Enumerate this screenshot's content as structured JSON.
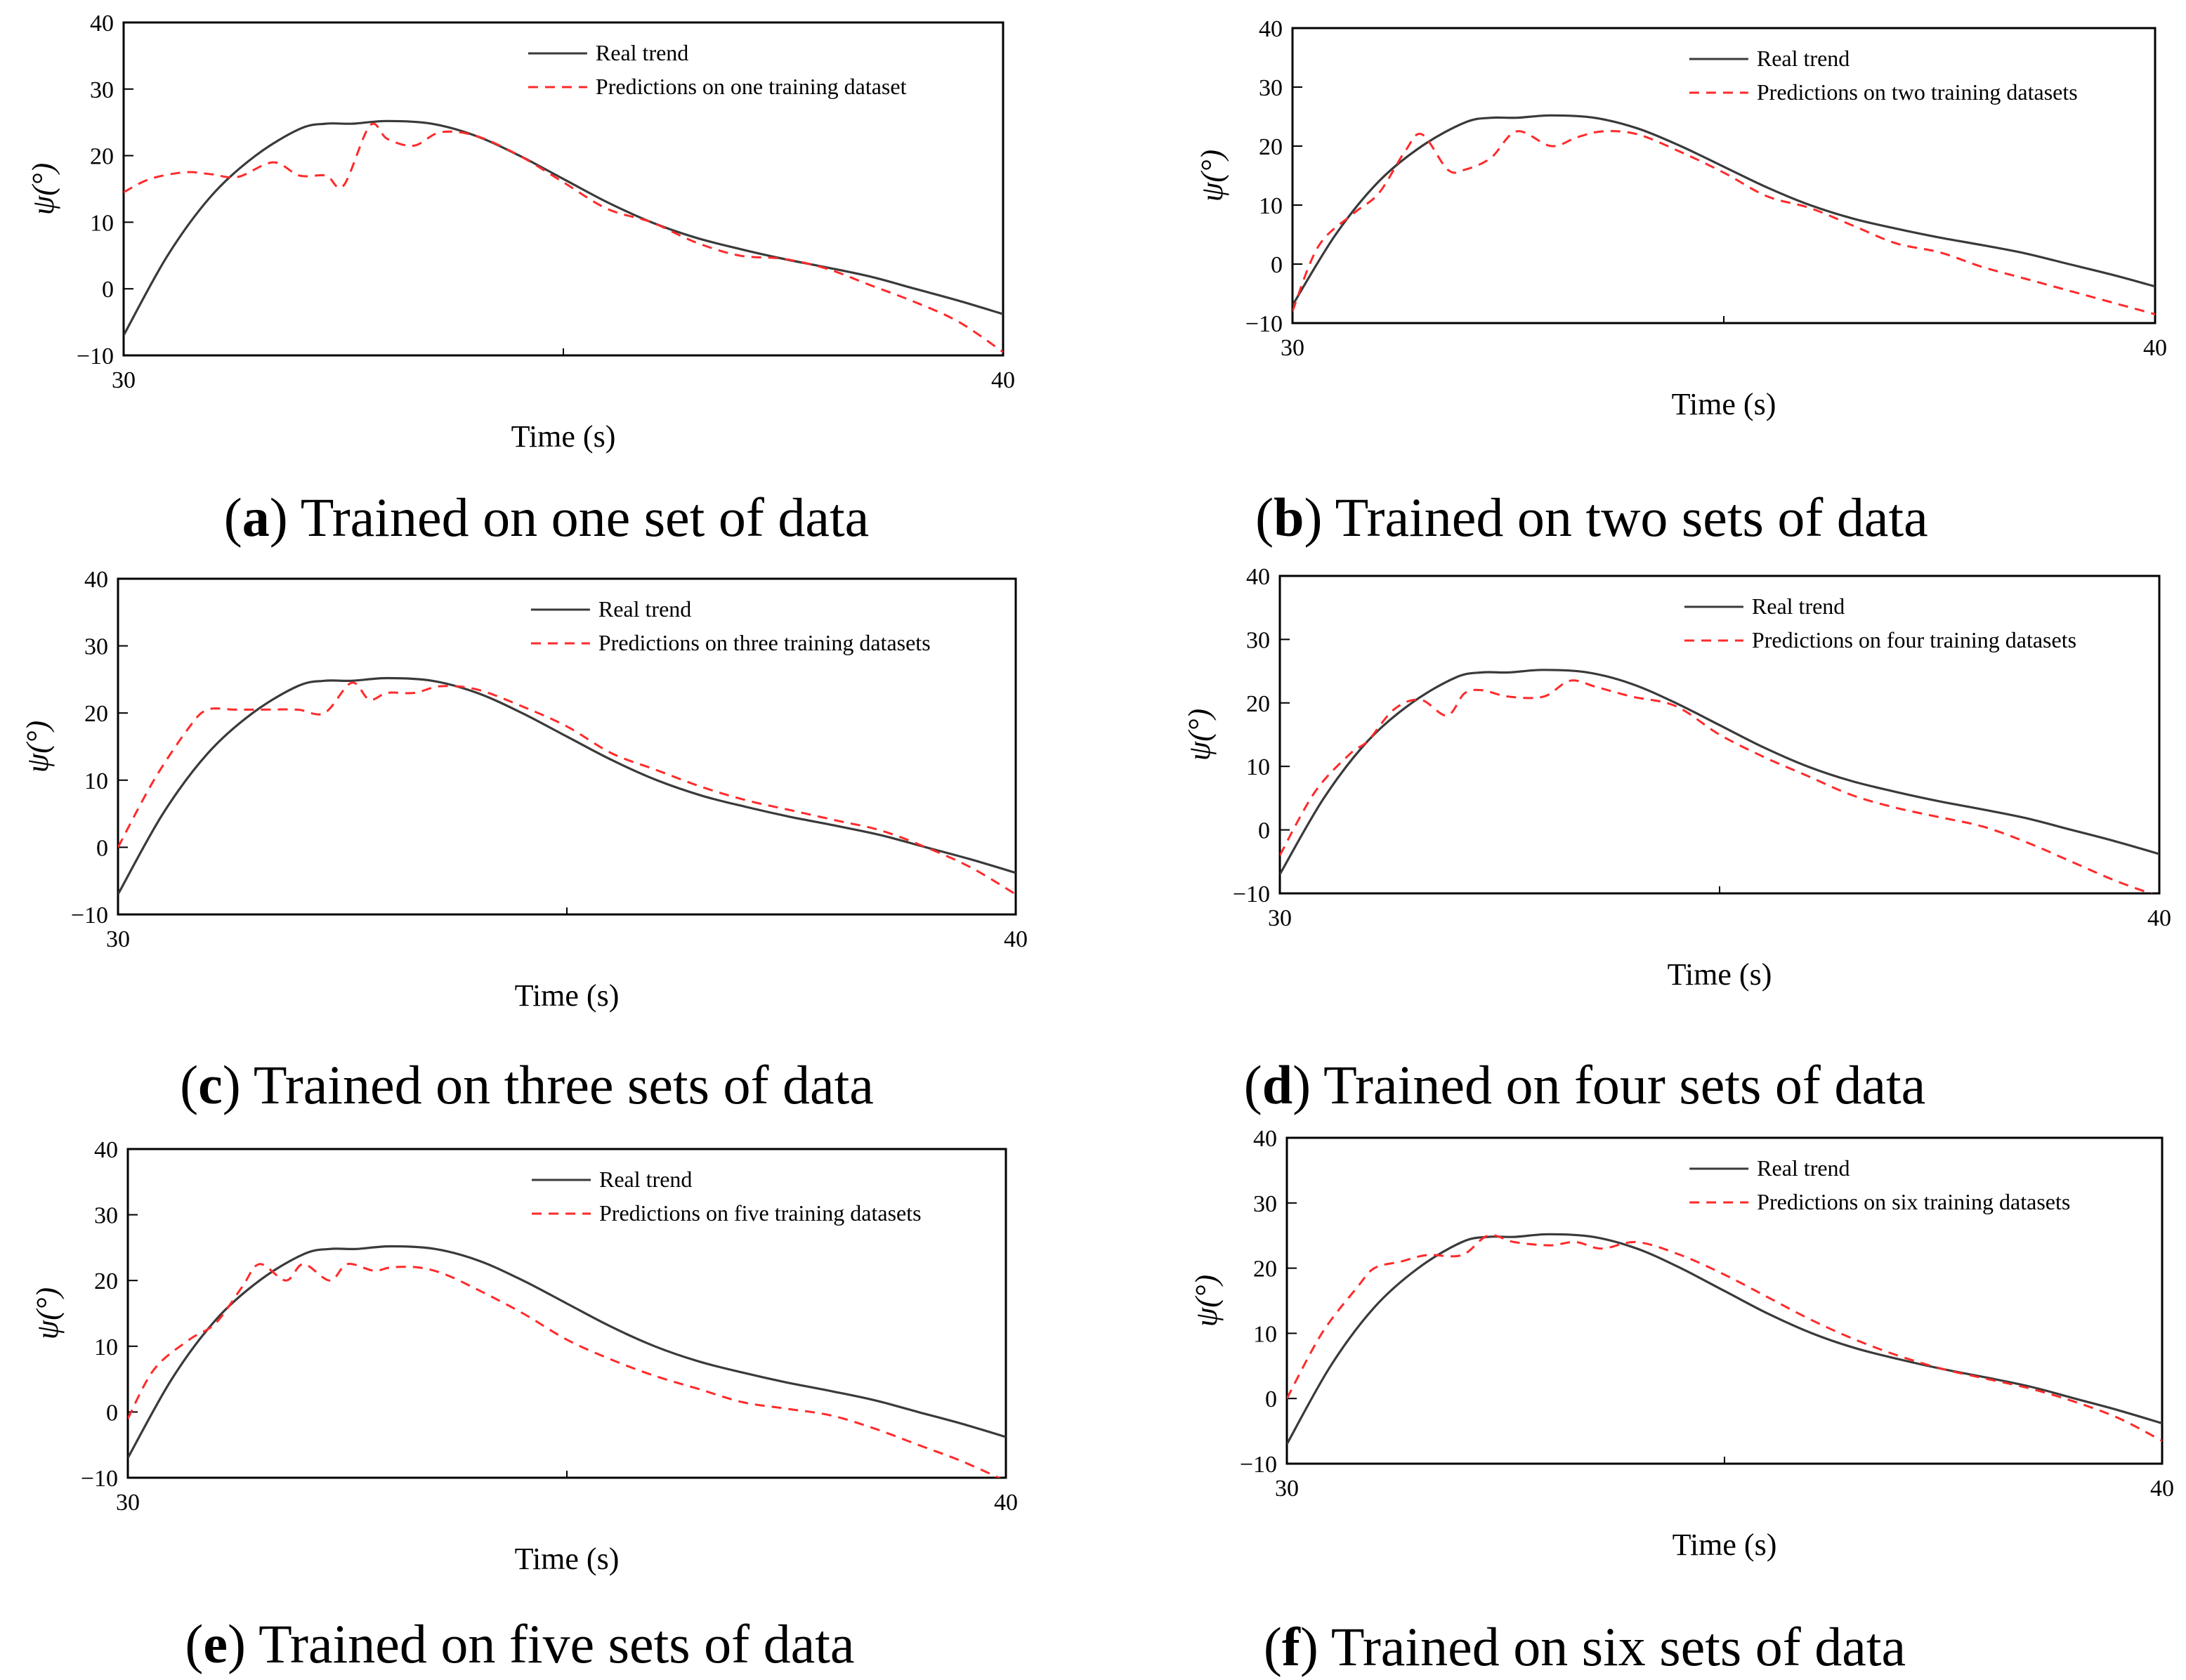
{
  "figure": {
    "colors": {
      "real": "#3a3a3a",
      "pred": "#ff2a2a",
      "axis": "#000000"
    }
  },
  "chart_data": [
    {
      "id": "a",
      "type": "line",
      "caption_letter": "a",
      "caption_text": "Trained on one set of data",
      "xlabel": "Time (s)",
      "ylabel": "ψ(°)",
      "xlim": [
        30,
        40
      ],
      "ylim": [
        -10,
        40
      ],
      "xticks": [
        30,
        40
      ],
      "yticks": [
        -10,
        0,
        10,
        20,
        30,
        40
      ],
      "legend": [
        "Real trend",
        "Predictions on one training dataset"
      ],
      "series": [
        {
          "name": "Real trend",
          "x": [
            30,
            30.5,
            31,
            31.5,
            32,
            32.3,
            32.6,
            33,
            33.5,
            34,
            34.5,
            35,
            35.5,
            36,
            36.5,
            37,
            37.5,
            38,
            38.5,
            39,
            39.5,
            40
          ],
          "y": [
            -7,
            5,
            14,
            20,
            24,
            24.8,
            24.8,
            25.2,
            24.8,
            23,
            20,
            16.5,
            13,
            10,
            7.7,
            6,
            4.5,
            3.2,
            1.8,
            0,
            -1.8,
            -3.8
          ]
        },
        {
          "name": "Predictions on one training dataset",
          "x": [
            30,
            30.3,
            30.7,
            31,
            31.3,
            31.7,
            32,
            32.3,
            32.5,
            32.8,
            33,
            33.3,
            33.6,
            34,
            34.5,
            35,
            35.5,
            36,
            36.5,
            37,
            37.5,
            38,
            38.5,
            39,
            39.5,
            40
          ],
          "y": [
            14.5,
            16.5,
            17.5,
            17.2,
            16.8,
            19,
            17,
            17,
            15.5,
            24.5,
            22.5,
            21.5,
            23.5,
            23,
            20,
            16,
            12,
            10,
            7,
            5,
            4.5,
            3,
            0.5,
            -2,
            -5,
            -9.5
          ]
        }
      ]
    },
    {
      "id": "b",
      "type": "line",
      "caption_letter": "b",
      "caption_text": "Trained on two sets of data",
      "xlabel": "Time (s)",
      "ylabel": "ψ(°)",
      "xlim": [
        30,
        40
      ],
      "ylim": [
        -10,
        40
      ],
      "xticks": [
        30,
        40
      ],
      "yticks": [
        -10,
        0,
        10,
        20,
        30,
        40
      ],
      "legend": [
        "Real trend",
        "Predictions on two training datasets"
      ],
      "series": [
        {
          "name": "Real trend",
          "x": [
            30,
            30.5,
            31,
            31.5,
            32,
            32.3,
            32.6,
            33,
            33.5,
            34,
            34.5,
            35,
            35.5,
            36,
            36.5,
            37,
            37.5,
            38,
            38.5,
            39,
            39.5,
            40
          ],
          "y": [
            -7,
            5,
            14,
            20,
            24,
            24.8,
            24.8,
            25.2,
            24.8,
            23,
            20,
            16.5,
            13,
            10,
            7.7,
            6,
            4.5,
            3.2,
            1.8,
            0,
            -1.8,
            -3.8
          ]
        },
        {
          "name": "Predictions on two training datasets",
          "x": [
            30,
            30.3,
            30.7,
            31,
            31.3,
            31.5,
            31.8,
            32,
            32.3,
            32.6,
            33,
            33.3,
            33.6,
            34,
            34.5,
            35,
            35.5,
            36,
            36.5,
            37,
            37.5,
            38,
            38.5,
            39,
            39.5,
            40
          ],
          "y": [
            -8,
            3,
            8.5,
            12,
            19,
            22,
            16,
            16,
            18,
            22.5,
            20,
            21.5,
            22.5,
            22,
            19,
            15.5,
            11.5,
            9.5,
            6.5,
            3.5,
            2,
            -0.5,
            -2.5,
            -4.5,
            -6.5,
            -8.5
          ]
        }
      ]
    },
    {
      "id": "c",
      "type": "line",
      "caption_letter": "c",
      "caption_text": "Trained on three sets of data",
      "xlabel": "Time (s)",
      "ylabel": "ψ(°)",
      "xlim": [
        30,
        40
      ],
      "ylim": [
        -10,
        40
      ],
      "xticks": [
        30,
        40
      ],
      "yticks": [
        -10,
        0,
        10,
        20,
        30,
        40
      ],
      "legend": [
        "Real trend",
        "Predictions on three training datasets"
      ],
      "series": [
        {
          "name": "Real trend",
          "x": [
            30,
            30.5,
            31,
            31.5,
            32,
            32.3,
            32.6,
            33,
            33.5,
            34,
            34.5,
            35,
            35.5,
            36,
            36.5,
            37,
            37.5,
            38,
            38.5,
            39,
            39.5,
            40
          ],
          "y": [
            -7,
            5,
            14,
            20,
            24,
            24.8,
            24.8,
            25.2,
            24.8,
            23,
            20,
            16.5,
            13,
            10,
            7.7,
            6,
            4.5,
            3.2,
            1.8,
            0,
            -1.8,
            -3.8
          ]
        },
        {
          "name": "Predictions on three training datasets",
          "x": [
            30,
            30.4,
            30.8,
            31,
            31.3,
            31.6,
            32,
            32.3,
            32.6,
            32.8,
            33,
            33.3,
            33.6,
            34,
            34.5,
            35,
            35.5,
            36,
            36.5,
            37,
            37.5,
            38,
            38.5,
            39,
            39.5,
            40
          ],
          "y": [
            0,
            10,
            18,
            20.5,
            20.5,
            20.5,
            20.5,
            20,
            24.5,
            22,
            23,
            23,
            24,
            23.5,
            21,
            18,
            14,
            11.5,
            9,
            7,
            5.5,
            4,
            2.5,
            0,
            -3,
            -7
          ]
        }
      ]
    },
    {
      "id": "d",
      "type": "line",
      "caption_letter": "d",
      "caption_text": "Trained on four sets of data",
      "xlabel": "Time (s)",
      "ylabel": "ψ(°)",
      "xlim": [
        30,
        40
      ],
      "ylim": [
        -10,
        40
      ],
      "xticks": [
        30,
        40
      ],
      "yticks": [
        -10,
        0,
        10,
        20,
        30,
        40
      ],
      "legend": [
        "Real trend",
        "Predictions on four training datasets"
      ],
      "series": [
        {
          "name": "Real trend",
          "x": [
            30,
            30.5,
            31,
            31.5,
            32,
            32.3,
            32.6,
            33,
            33.5,
            34,
            34.5,
            35,
            35.5,
            36,
            36.5,
            37,
            37.5,
            38,
            38.5,
            39,
            39.5,
            40
          ],
          "y": [
            -7,
            5,
            14,
            20,
            24,
            24.8,
            24.8,
            25.2,
            24.8,
            23,
            20,
            16.5,
            13,
            10,
            7.7,
            6,
            4.5,
            3.2,
            1.8,
            0,
            -1.8,
            -3.8
          ]
        },
        {
          "name": "Predictions on four training datasets",
          "x": [
            30,
            30.4,
            30.8,
            31,
            31.3,
            31.6,
            31.9,
            32.1,
            32.3,
            32.6,
            33,
            33.3,
            33.6,
            34,
            34.5,
            35,
            35.5,
            36,
            36.5,
            37,
            37.5,
            38,
            38.5,
            39,
            39.5,
            40
          ],
          "y": [
            -4,
            6,
            12,
            14,
            19,
            20.5,
            18,
            21.5,
            22,
            21,
            21,
            23.5,
            22.5,
            21,
            19.5,
            15,
            11.5,
            8.5,
            5.5,
            3.5,
            2,
            0.5,
            -2,
            -5,
            -8,
            -10.5
          ]
        }
      ]
    },
    {
      "id": "e",
      "type": "line",
      "caption_letter": "e",
      "caption_text": "Trained on five sets of data",
      "xlabel": "Time (s)",
      "ylabel": "ψ(°)",
      "xlim": [
        30,
        40
      ],
      "ylim": [
        -10,
        40
      ],
      "xticks": [
        30,
        40
      ],
      "yticks": [
        -10,
        0,
        10,
        20,
        30,
        40
      ],
      "legend": [
        "Real trend",
        "Predictions on five training datasets"
      ],
      "series": [
        {
          "name": "Real trend",
          "x": [
            30,
            30.5,
            31,
            31.5,
            32,
            32.3,
            32.6,
            33,
            33.5,
            34,
            34.5,
            35,
            35.5,
            36,
            36.5,
            37,
            37.5,
            38,
            38.5,
            39,
            39.5,
            40
          ],
          "y": [
            -7,
            5,
            14,
            20,
            24,
            24.8,
            24.8,
            25.2,
            24.8,
            23,
            20,
            16.5,
            13,
            10,
            7.7,
            6,
            4.5,
            3.2,
            1.8,
            0,
            -1.8,
            -3.8
          ]
        },
        {
          "name": "Predictions on five training datasets",
          "x": [
            30,
            30.3,
            30.7,
            31,
            31.3,
            31.5,
            31.8,
            32,
            32.3,
            32.5,
            32.8,
            33,
            33.3,
            33.6,
            34,
            34.5,
            35,
            35.5,
            36,
            36.5,
            37,
            37.5,
            38,
            38.5,
            39,
            39.5,
            40
          ],
          "y": [
            -1,
            6.5,
            11,
            13.5,
            19,
            22.5,
            20,
            22.5,
            20,
            22.5,
            21.5,
            22,
            22,
            21,
            18.5,
            15,
            11,
            8,
            5.5,
            3.5,
            1.5,
            0.5,
            -0.5,
            -2.5,
            -5,
            -7.5,
            -10.5
          ]
        }
      ]
    },
    {
      "id": "f",
      "type": "line",
      "caption_letter": "f",
      "caption_text": "Trained on six sets of data",
      "xlabel": "Time (s)",
      "ylabel": "ψ(°)",
      "xlim": [
        30,
        40
      ],
      "ylim": [
        -10,
        40
      ],
      "xticks": [
        30,
        40
      ],
      "yticks": [
        -10,
        0,
        10,
        20,
        30,
        40
      ],
      "legend": [
        "Real trend",
        "Predictions on six training datasets"
      ],
      "series": [
        {
          "name": "Real trend",
          "x": [
            30,
            30.5,
            31,
            31.5,
            32,
            32.3,
            32.6,
            33,
            33.5,
            34,
            34.5,
            35,
            35.5,
            36,
            36.5,
            37,
            37.5,
            38,
            38.5,
            39,
            39.5,
            40
          ],
          "y": [
            -7,
            5,
            14,
            20,
            24,
            24.8,
            24.8,
            25.2,
            24.8,
            23,
            20,
            16.5,
            13,
            10,
            7.7,
            6,
            4.5,
            3.2,
            1.8,
            0,
            -1.8,
            -3.8
          ]
        },
        {
          "name": "Predictions on six training datasets",
          "x": [
            30,
            30.4,
            30.8,
            31,
            31.3,
            31.6,
            32,
            32.3,
            32.6,
            33,
            33.3,
            33.6,
            34,
            34.5,
            35,
            35.5,
            36,
            36.5,
            37,
            37.5,
            38,
            38.5,
            39,
            39.5,
            40
          ],
          "y": [
            0,
            10,
            17,
            20,
            21,
            22,
            22,
            25,
            24,
            23.5,
            24,
            23,
            24,
            22,
            19,
            15.5,
            12,
            9,
            6.5,
            4.5,
            3,
            1.5,
            -0.5,
            -3,
            -6.5
          ]
        }
      ]
    }
  ]
}
